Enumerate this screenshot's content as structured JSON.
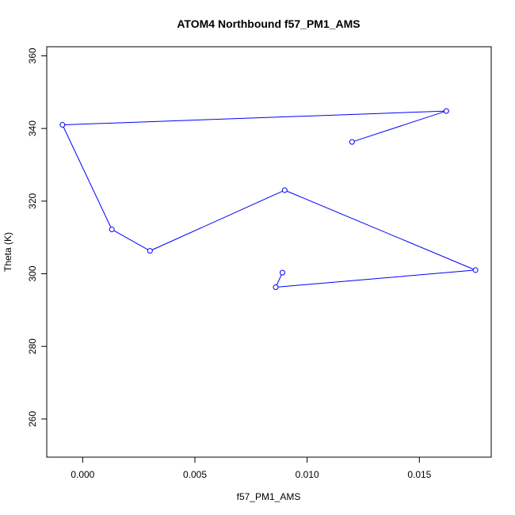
{
  "chart_data": {
    "type": "line",
    "title": "ATOM4 Northbound f57_PM1_AMS",
    "xlabel": "f57_PM1_AMS",
    "ylabel": "Theta (K)",
    "xlim": [
      -0.0016,
      0.0182
    ],
    "ylim": [
      249.5,
      362.5
    ],
    "x_ticks": [
      0.0,
      0.005,
      0.01,
      0.015
    ],
    "x_tick_labels": [
      "0.000",
      "0.005",
      "0.010",
      "0.015"
    ],
    "y_ticks": [
      260,
      280,
      300,
      320,
      340,
      360
    ],
    "y_tick_labels": [
      "260",
      "280",
      "300",
      "320",
      "340",
      "360"
    ],
    "grid": false,
    "series": [
      {
        "color": "#0000ff",
        "marker": "open-circle",
        "x": [
          0.0089,
          0.0086,
          0.0175,
          0.009,
          0.003,
          0.0013,
          -0.0009,
          0.0162,
          0.012
        ],
        "y": [
          300.3,
          296.3,
          301.0,
          323.0,
          306.3,
          312.2,
          341.0,
          344.8,
          336.3
        ]
      }
    ]
  }
}
